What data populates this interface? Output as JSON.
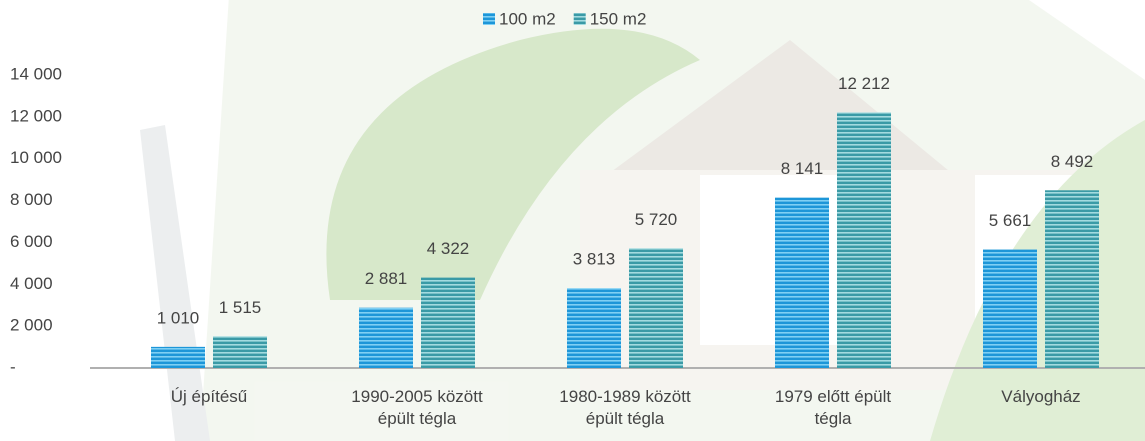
{
  "chart_data": {
    "type": "bar",
    "categories": [
      "Új építésű",
      "1990-2005 között épült tégla",
      "1980-1989 között épült tégla",
      "1979 előtt épült tégla",
      "Vályogház"
    ],
    "series": [
      {
        "name": "100 m2",
        "color": "#2ea6e3",
        "values": [
          1010,
          2881,
          3813,
          8141,
          5661
        ],
        "value_labels": [
          "1 010",
          "2 881",
          "3 813",
          "8 141",
          "5 661"
        ]
      },
      {
        "name": "150 m2",
        "color": "#45a8b3",
        "values": [
          1515,
          4322,
          5720,
          12212,
          8492
        ],
        "value_labels": [
          "1 515",
          "4 322",
          "5 720",
          "12 212",
          "8 492"
        ]
      }
    ],
    "ylim": [
      0,
      14000
    ],
    "yticks": [
      {
        "value": 0,
        "label": "-"
      },
      {
        "value": 2000,
        "label": "2 000"
      },
      {
        "value": 4000,
        "label": "4 000"
      },
      {
        "value": 6000,
        "label": "6 000"
      },
      {
        "value": 8000,
        "label": "8 000"
      },
      {
        "value": 10000,
        "label": "10 000"
      },
      {
        "value": 12000,
        "label": "12 000"
      },
      {
        "value": 14000,
        "label": "14 000"
      }
    ],
    "legend": "top"
  }
}
